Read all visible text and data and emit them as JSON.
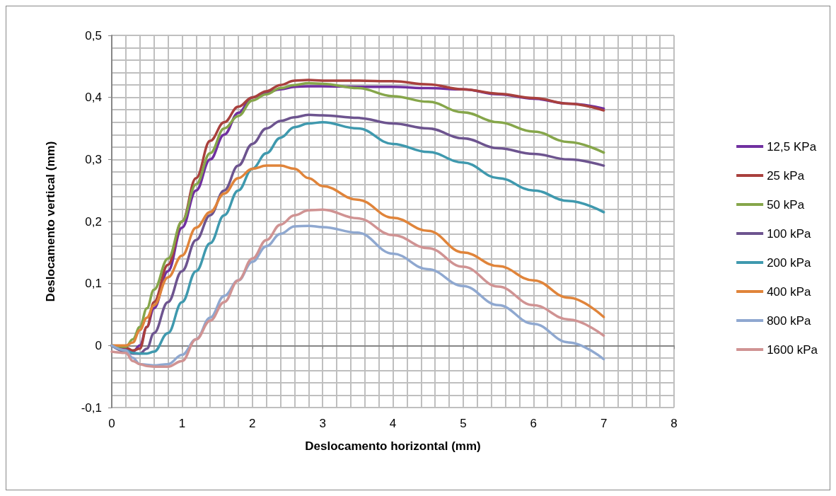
{
  "chart_data": {
    "type": "line",
    "xlabel": "Deslocamento horizontal (mm)",
    "ylabel": "Deslocamento vertical (mm)",
    "x": [
      0,
      0.2,
      0.3,
      0.4,
      0.5,
      0.6,
      0.8,
      1,
      1.2,
      1.4,
      1.6,
      1.8,
      2,
      2.2,
      2.4,
      2.6,
      2.8,
      3,
      3.5,
      4,
      4.5,
      5,
      5.5,
      6,
      6.5,
      7
    ],
    "series": [
      {
        "name": "12,5 KPa",
        "color": "#7030a0",
        "values": [
          0,
          -0.005,
          -0.01,
          0,
          0.03,
          0.06,
          0.12,
          0.19,
          0.25,
          0.3,
          0.34,
          0.375,
          0.4,
          0.408,
          0.413,
          0.417,
          0.418,
          0.418,
          0.417,
          0.417,
          0.415,
          0.413,
          0.405,
          0.398,
          0.39,
          0.382
        ]
      },
      {
        "name": "25 kPa",
        "color": "#a9403d",
        "values": [
          0,
          -0.003,
          -0.008,
          -0.005,
          0.03,
          0.07,
          0.13,
          0.2,
          0.27,
          0.33,
          0.36,
          0.385,
          0.4,
          0.41,
          0.42,
          0.427,
          0.428,
          0.427,
          0.427,
          0.426,
          0.421,
          0.413,
          0.406,
          0.399,
          0.39,
          0.379
        ]
      },
      {
        "name": "50 kPa",
        "color": "#86a64a",
        "values": [
          0,
          -0.002,
          0.01,
          0.03,
          0.06,
          0.09,
          0.14,
          0.2,
          0.26,
          0.31,
          0.35,
          0.37,
          0.395,
          0.405,
          0.415,
          0.42,
          0.423,
          0.422,
          0.415,
          0.402,
          0.393,
          0.376,
          0.36,
          0.345,
          0.328,
          0.311
        ]
      },
      {
        "name": "100 kPa",
        "color": "#6d548f",
        "values": [
          0,
          -0.01,
          -0.013,
          -0.013,
          -0.005,
          0.02,
          0.07,
          0.12,
          0.17,
          0.21,
          0.25,
          0.29,
          0.325,
          0.35,
          0.362,
          0.368,
          0.372,
          0.371,
          0.367,
          0.358,
          0.35,
          0.334,
          0.318,
          0.309,
          0.3,
          0.29
        ]
      },
      {
        "name": "200 kPa",
        "color": "#3f99ae",
        "values": [
          0,
          -0.008,
          -0.012,
          -0.013,
          -0.013,
          -0.01,
          0.02,
          0.07,
          0.12,
          0.165,
          0.21,
          0.25,
          0.285,
          0.31,
          0.335,
          0.352,
          0.358,
          0.36,
          0.35,
          0.325,
          0.312,
          0.295,
          0.27,
          0.25,
          0.233,
          0.215
        ]
      },
      {
        "name": "400 kPa",
        "color": "#e0843a",
        "values": [
          0,
          0,
          0.005,
          0.025,
          0.045,
          0.065,
          0.11,
          0.145,
          0.19,
          0.215,
          0.245,
          0.27,
          0.285,
          0.29,
          0.29,
          0.285,
          0.27,
          0.257,
          0.235,
          0.206,
          0.185,
          0.15,
          0.128,
          0.105,
          0.077,
          0.046
        ]
      },
      {
        "name": "800 kPa",
        "color": "#8fa8d0",
        "values": [
          0,
          -0.008,
          -0.02,
          -0.03,
          -0.031,
          -0.032,
          -0.03,
          -0.015,
          0.01,
          0.045,
          0.08,
          0.105,
          0.135,
          0.16,
          0.18,
          0.192,
          0.193,
          0.191,
          0.182,
          0.148,
          0.123,
          0.096,
          0.065,
          0.035,
          0.005,
          -0.022
        ]
      },
      {
        "name": "1600 kPa",
        "color": "#d09393",
        "values": [
          -0.01,
          -0.012,
          -0.025,
          -0.03,
          -0.033,
          -0.034,
          -0.034,
          -0.025,
          0.01,
          0.04,
          0.07,
          0.105,
          0.14,
          0.17,
          0.195,
          0.21,
          0.218,
          0.219,
          0.205,
          0.178,
          0.157,
          0.127,
          0.095,
          0.065,
          0.042,
          0.016
        ]
      }
    ],
    "xlim": [
      0,
      8
    ],
    "xticks": [
      0,
      1,
      2,
      3,
      4,
      5,
      6,
      7,
      8
    ],
    "ylim": [
      -0.1,
      0.5
    ],
    "yticks": [
      {
        "value": -0.1,
        "label": "-0,1"
      },
      {
        "value": 0,
        "label": "0"
      },
      {
        "value": 0.1,
        "label": "0,1"
      },
      {
        "value": 0.2,
        "label": "0,2"
      },
      {
        "value": 0.3,
        "label": "0,3"
      },
      {
        "value": 0.4,
        "label": "0,4"
      },
      {
        "value": 0.5,
        "label": "0,5"
      }
    ],
    "grid": true,
    "legend": "right",
    "marker": "none",
    "line_style": "solid"
  }
}
